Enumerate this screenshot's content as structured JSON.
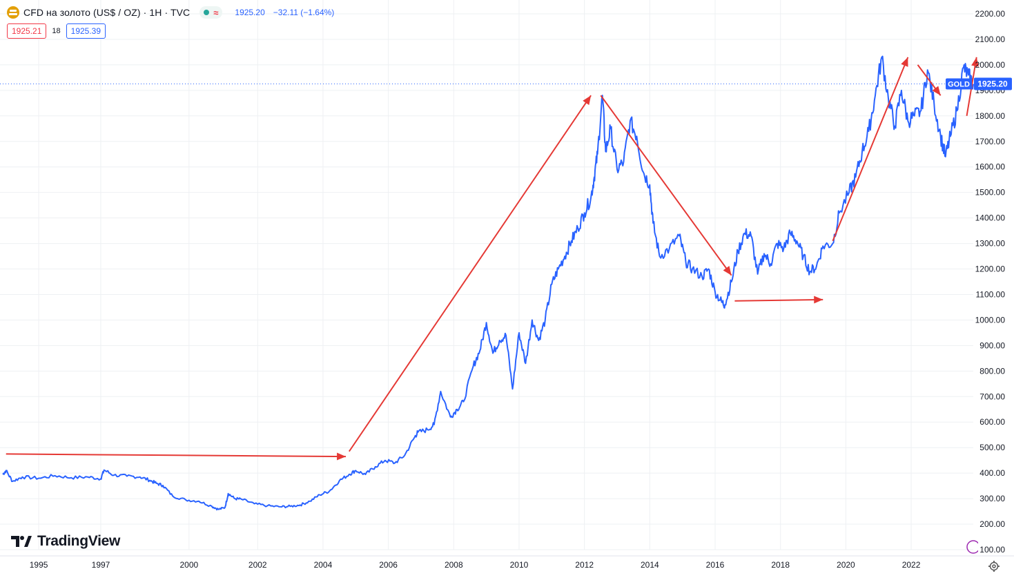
{
  "header": {
    "symbol_title": "CFD на золото (US$ / OZ) · 1H · TVC",
    "last_price": "1925.20",
    "change": "−32.11 (−1.64%)",
    "approx_symbol": "≈"
  },
  "quote": {
    "bid": "1925.21",
    "spread": "18",
    "ask": "1925.39"
  },
  "price_badge": {
    "symbol": "GOLD",
    "value": "1925.20"
  },
  "brand": {
    "name": "TradingView"
  },
  "colors": {
    "line": "#2962ff",
    "arrow": "#e53935",
    "grid": "#eef0f3",
    "axis_text": "#131722"
  },
  "chart_data": {
    "type": "line",
    "title": "CFD на золото (US$ / OZ) · 1H · TVC",
    "xlabel": "",
    "ylabel": "",
    "xlim": [
      1993.9,
      2023.6
    ],
    "ylim": [
      100,
      2200
    ],
    "y_ticks": [
      "100.00",
      "200.00",
      "300.00",
      "400.00",
      "500.00",
      "600.00",
      "700.00",
      "800.00",
      "900.00",
      "1000.00",
      "1100.00",
      "1200.00",
      "1300.00",
      "1400.00",
      "1500.00",
      "1600.00",
      "1700.00",
      "1800.00",
      "1900.00",
      "2000.00",
      "2100.00",
      "2200.00"
    ],
    "x_ticks": [
      {
        "label": "1995",
        "value": 1995.0
      },
      {
        "label": "1997",
        "value": 1996.9
      },
      {
        "label": "2000",
        "value": 1999.6
      },
      {
        "label": "2002",
        "value": 2001.7
      },
      {
        "label": "2004",
        "value": 2003.7
      },
      {
        "label": "2006",
        "value": 2005.7
      },
      {
        "label": "2008",
        "value": 2007.7
      },
      {
        "label": "2010",
        "value": 2009.7
      },
      {
        "label": "2012",
        "value": 2011.7
      },
      {
        "label": "2014",
        "value": 2013.7
      },
      {
        "label": "2016",
        "value": 2015.7
      },
      {
        "label": "2018",
        "value": 2017.7
      },
      {
        "label": "2020",
        "value": 2019.7
      },
      {
        "label": "2022",
        "value": 2021.7
      }
    ],
    "current_price": 1925.2,
    "series": [
      {
        "name": "GOLD",
        "points": [
          [
            1993.9,
            395
          ],
          [
            1994.0,
            410
          ],
          [
            1994.2,
            368
          ],
          [
            1994.5,
            385
          ],
          [
            1995.0,
            380
          ],
          [
            1995.5,
            390
          ],
          [
            1996.0,
            382
          ],
          [
            1996.5,
            385
          ],
          [
            1996.9,
            378
          ],
          [
            1997.0,
            412
          ],
          [
            1997.3,
            392
          ],
          [
            1997.7,
            388
          ],
          [
            1998.1,
            385
          ],
          [
            1998.4,
            372
          ],
          [
            1998.6,
            360
          ],
          [
            1998.8,
            352
          ],
          [
            1999.1,
            310
          ],
          [
            1999.5,
            295
          ],
          [
            1999.9,
            290
          ],
          [
            2000.3,
            270
          ],
          [
            2000.5,
            258
          ],
          [
            2000.7,
            265
          ],
          [
            2000.8,
            320
          ],
          [
            2001.0,
            300
          ],
          [
            2001.2,
            298
          ],
          [
            2001.6,
            280
          ],
          [
            2002.0,
            272
          ],
          [
            2002.4,
            268
          ],
          [
            2002.7,
            270
          ],
          [
            2003.0,
            275
          ],
          [
            2003.3,
            290
          ],
          [
            2003.6,
            315
          ],
          [
            2003.9,
            330
          ],
          [
            2004.2,
            370
          ],
          [
            2004.5,
            395
          ],
          [
            2004.7,
            410
          ],
          [
            2005.0,
            395
          ],
          [
            2005.3,
            425
          ],
          [
            2005.6,
            450
          ],
          [
            2005.9,
            440
          ],
          [
            2006.2,
            470
          ],
          [
            2006.5,
            540
          ],
          [
            2006.6,
            560
          ],
          [
            2006.9,
            570
          ],
          [
            2007.1,
            590
          ],
          [
            2007.3,
            720
          ],
          [
            2007.6,
            620
          ],
          [
            2007.8,
            650
          ],
          [
            2008.0,
            680
          ],
          [
            2008.3,
            820
          ],
          [
            2008.5,
            880
          ],
          [
            2008.7,
            990
          ],
          [
            2008.9,
            870
          ],
          [
            2009.1,
            920
          ],
          [
            2009.3,
            940
          ],
          [
            2009.5,
            730
          ],
          [
            2009.7,
            950
          ],
          [
            2009.9,
            830
          ],
          [
            2010.1,
            1000
          ],
          [
            2010.3,
            920
          ],
          [
            2010.5,
            1000
          ],
          [
            2010.7,
            1140
          ],
          [
            2010.9,
            1200
          ],
          [
            2011.1,
            1250
          ],
          [
            2011.3,
            1310
          ],
          [
            2011.5,
            1360
          ],
          [
            2011.7,
            1420
          ],
          [
            2011.9,
            1480
          ],
          [
            2012.0,
            1560
          ],
          [
            2012.1,
            1650
          ],
          [
            2012.25,
            1880
          ],
          [
            2012.35,
            1660
          ],
          [
            2012.5,
            1750
          ],
          [
            2012.7,
            1590
          ],
          [
            2012.9,
            1620
          ],
          [
            2013.1,
            1780
          ],
          [
            2013.3,
            1720
          ],
          [
            2013.5,
            1580
          ],
          [
            2013.7,
            1530
          ],
          [
            2013.8,
            1380
          ],
          [
            2014.0,
            1250
          ],
          [
            2014.3,
            1280
          ],
          [
            2014.6,
            1330
          ],
          [
            2014.8,
            1230
          ],
          [
            2015.0,
            1200
          ],
          [
            2015.3,
            1170
          ],
          [
            2015.5,
            1200
          ],
          [
            2015.7,
            1110
          ],
          [
            2015.9,
            1070
          ],
          [
            2016.0,
            1060
          ],
          [
            2016.2,
            1150
          ],
          [
            2016.4,
            1270
          ],
          [
            2016.6,
            1340
          ],
          [
            2016.8,
            1330
          ],
          [
            2017.0,
            1180
          ],
          [
            2017.2,
            1260
          ],
          [
            2017.4,
            1220
          ],
          [
            2017.6,
            1300
          ],
          [
            2017.8,
            1280
          ],
          [
            2018.0,
            1340
          ],
          [
            2018.2,
            1310
          ],
          [
            2018.4,
            1250
          ],
          [
            2018.6,
            1190
          ],
          [
            2018.8,
            1210
          ],
          [
            2019.0,
            1290
          ],
          [
            2019.3,
            1300
          ],
          [
            2019.5,
            1420
          ],
          [
            2019.8,
            1500
          ],
          [
            2020.0,
            1560
          ],
          [
            2020.2,
            1660
          ],
          [
            2020.4,
            1740
          ],
          [
            2020.6,
            1880
          ],
          [
            2020.8,
            2030
          ],
          [
            2021.0,
            1870
          ],
          [
            2021.2,
            1760
          ],
          [
            2021.4,
            1900
          ],
          [
            2021.6,
            1780
          ],
          [
            2021.8,
            1800
          ],
          [
            2022.0,
            1820
          ],
          [
            2022.2,
            1980
          ],
          [
            2022.4,
            1850
          ],
          [
            2022.6,
            1720
          ],
          [
            2022.75,
            1640
          ],
          [
            2022.9,
            1720
          ],
          [
            2023.1,
            1820
          ],
          [
            2023.3,
            1990
          ],
          [
            2023.45,
            1960
          ],
          [
            2023.6,
            1925
          ]
        ]
      }
    ],
    "annotations": [
      {
        "type": "arrow",
        "from": [
          1994.0,
          475
        ],
        "to": [
          2004.4,
          465
        ]
      },
      {
        "type": "arrow",
        "from": [
          2004.5,
          485
        ],
        "to": [
          2011.9,
          1880
        ]
      },
      {
        "type": "arrow",
        "from": [
          2012.2,
          1880
        ],
        "to": [
          2016.2,
          1175
        ]
      },
      {
        "type": "arrow",
        "from": [
          2016.3,
          1075
        ],
        "to": [
          2019.0,
          1080
        ]
      },
      {
        "type": "arrow",
        "from": [
          2019.3,
          1310
        ],
        "to": [
          2021.6,
          2030
        ]
      },
      {
        "type": "arrow",
        "from": [
          2021.9,
          2000
        ],
        "to": [
          2022.6,
          1880
        ]
      },
      {
        "type": "arrow",
        "from": [
          2023.4,
          1800
        ],
        "to": [
          2023.7,
          2030
        ]
      }
    ]
  }
}
